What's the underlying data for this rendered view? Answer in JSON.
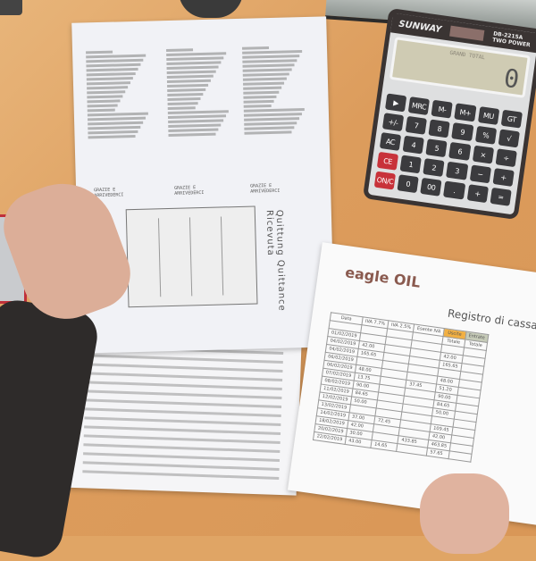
{
  "calculator": {
    "brand": "SUNWAY",
    "model": "DB-2215A",
    "power": "TWO POWER",
    "display_label": "GRAND TOTAL",
    "display_value": "0",
    "keys": [
      "▶",
      "MRC",
      "M-",
      "M+",
      "MU",
      "GT",
      "+/-",
      "7",
      "8",
      "9",
      "%",
      "√",
      "AC",
      "4",
      "5",
      "6",
      "×",
      "÷",
      "CE",
      "1",
      "2",
      "3",
      "−",
      "+",
      "ON/C",
      "0",
      "00",
      ".",
      "+",
      "="
    ]
  },
  "receipt": {
    "footer": [
      "GRAZIE E",
      "ARRIVEDERCI"
    ],
    "form_title": "Quittung  Quittance  Ricevuta"
  },
  "register": {
    "logo": "eagle OIL",
    "title": "Registro di cassa : banca",
    "columns": [
      "Data",
      "IVA 7.7%",
      "IVA 2.5%",
      "Esente IVA",
      "Uscite",
      "Entrate"
    ],
    "subcolumns": [
      "",
      "",
      "",
      "",
      "Totale",
      "Totale"
    ],
    "rows": [
      [
        "01/02/2019",
        "",
        "",
        "",
        "",
        ""
      ],
      [
        "04/02/2019",
        "42.00",
        "",
        "",
        "42.00",
        ""
      ],
      [
        "04/02/2019",
        "165.65",
        "",
        "",
        "165.65",
        ""
      ],
      [
        "06/02/2019",
        "",
        "",
        "",
        "",
        ""
      ],
      [
        "06/02/2019",
        "48.00",
        "",
        "",
        "48.00",
        ""
      ],
      [
        "07/02/2019",
        "13.75",
        "",
        "37.45",
        "51.20",
        ""
      ],
      [
        "08/02/2019",
        "90.00",
        "",
        "",
        "90.00",
        ""
      ],
      [
        "11/02/2019",
        "84.65",
        "",
        "",
        "84.65",
        ""
      ],
      [
        "12/02/2019",
        "50.00",
        "",
        "",
        "50.00",
        ""
      ],
      [
        "13/02/2019",
        "",
        "",
        "",
        "",
        ""
      ],
      [
        "14/02/2019",
        "37.00",
        "72.45",
        "",
        "109.45",
        ""
      ],
      [
        "18/02/2019",
        "42.00",
        "",
        "",
        "42.00",
        ""
      ],
      [
        "20/02/2019",
        "30.00",
        "",
        "433.85",
        "463.85",
        ""
      ],
      [
        "22/02/2019",
        "43.00",
        "14.65",
        "",
        "57.65",
        ""
      ]
    ]
  }
}
